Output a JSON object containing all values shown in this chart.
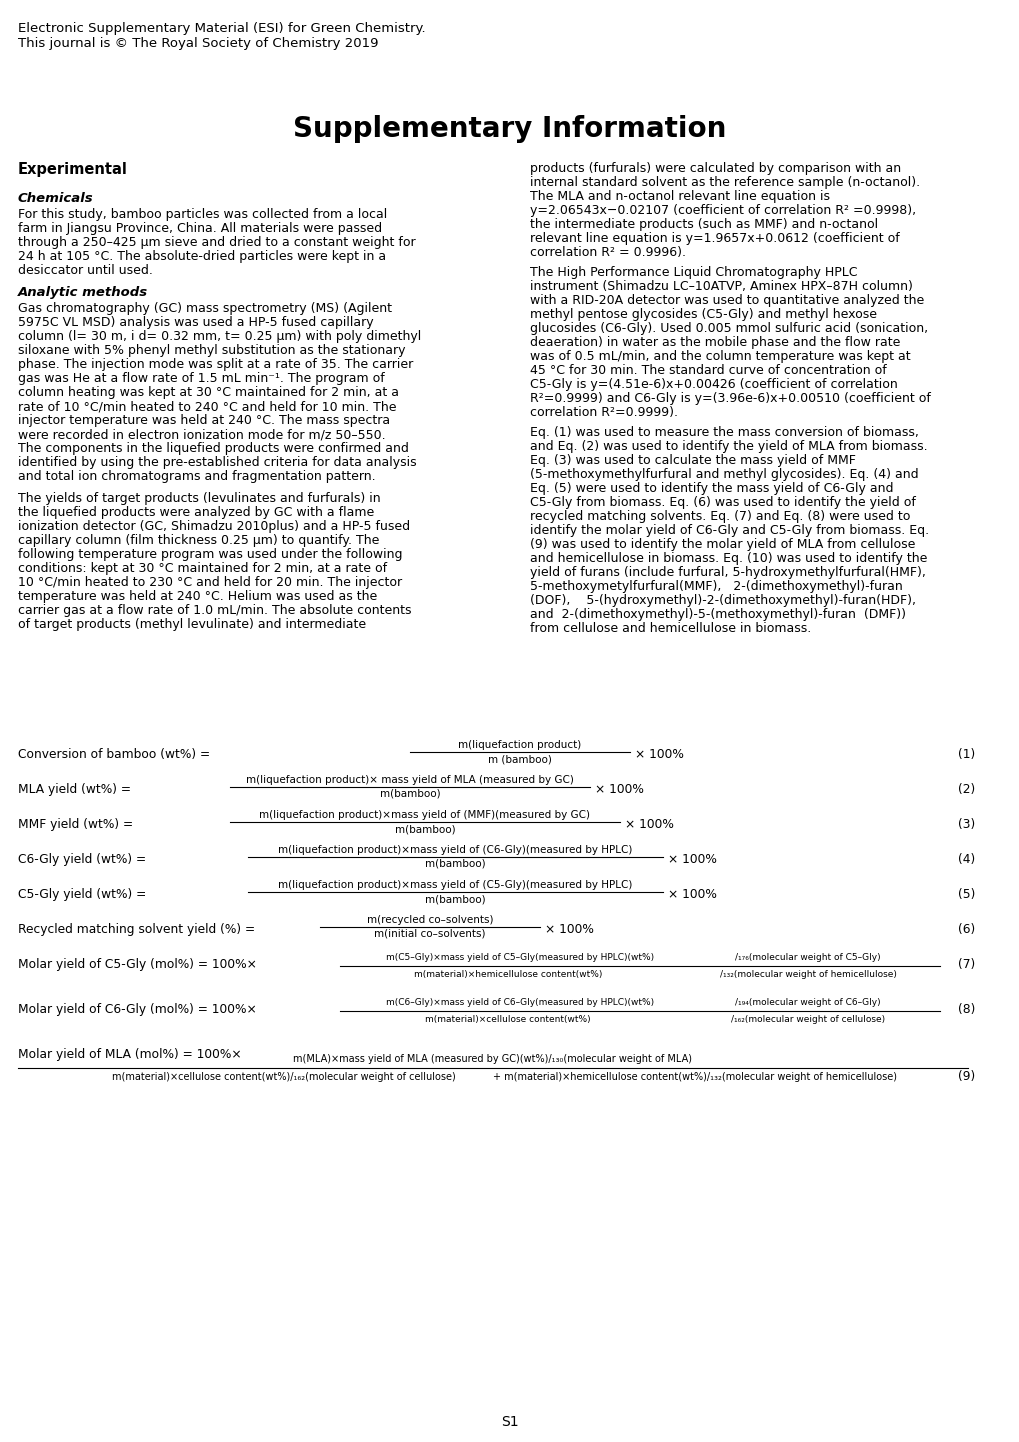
{
  "header_line1": "Electronic Supplementary Material (ESI) for Green Chemistry.",
  "header_line2": "This journal is © The Royal Society of Chemistry 2019",
  "title": "Supplementary Information",
  "section1_title": "Experimental",
  "subsec1_title": "Chemicals",
  "subsec1_body": "For this study, bamboo particles was collected from a local\nfarm in Jiangsu Province, China. All materials were passed\nthrough a 250–425 μm sieve and dried to a constant weight for\n24 h at 105 °C. The absolute-dried particles were kept in a\ndesiccator until used.",
  "subsec2_title": "Analytic methods",
  "subsec2_body": "Gas chromatography (GC) mass spectrometry (MS) (Agilent\n5975C VL MSD) analysis was used a HP-5 fused capillary\ncolumn (l= 30 m, i d= 0.32 mm, t= 0.25 μm) with poly dimethyl\nsiloxane with 5% phenyl methyl substitution as the stationary\nphase. The injection mode was split at a rate of 35. The carrier\ngas was He at a flow rate of 1.5 mL min⁻¹. The program of\ncolumn heating was kept at 30 °C maintained for 2 min, at a\nrate of 10 °C/min heated to 240 °C and held for 10 min. The\ninjector temperature was held at 240 °C. The mass spectra\nwere recorded in electron ionization mode for m/z 50–550.\nThe components in the liquefied products were confirmed and\nidentified by using the pre-established criteria for data analysis\nand total ion chromatograms and fragmentation pattern.",
  "left_para2": "The yields of target products (levulinates and furfurals) in\nthe liquefied products were analyzed by GC with a flame\nionization detector (GC, Shimadzu 2010plus) and a HP-5 fused\ncapillary column (film thickness 0.25 μm) to quantify. The\nfollowing temperature program was used under the following\nconditions: kept at 30 °C maintained for 2 min, at a rate of\n10 °C/min heated to 230 °C and held for 20 min. The injector\ntemperature was held at 240 °C. Helium was used as the\ncarrier gas at a flow rate of 1.0 mL/min. The absolute contents\nof target products (methyl levulinate) and intermediate",
  "right_para1": "products (furfurals) were calculated by comparison with an\ninternal standard solvent as the reference sample (n-octanol).\nThe MLA and n-octanol relevant line equation is\ny=2.06543x−0.02107 (coefficient of correlation R² =0.9998),\nthe intermediate products (such as MMF) and n-octanol\nrelevant line equation is y=1.9657x+0.0612 (coefficient of\ncorrelation R² = 0.9996).",
  "right_para2": "The High Performance Liquid Chromatography HPLC\ninstrument (Shimadzu LC–10ATVP, Aminex HPX–87H column)\nwith a RID-20A detector was used to quantitative analyzed the\nmethyl pentose glycosides (C5-Gly) and methyl hexose\nglucosides (C6-Gly). Used 0.005 mmol sulfuric acid (sonication,\ndeaeration) in water as the mobile phase and the flow rate\nwas of 0.5 mL/min, and the column temperature was kept at\n45 °C for 30 min. The standard curve of concentration of\nC5-Gly is y=(4.51e-6)x+0.00426 (coefficient of correlation\nR²=0.9999) and C6-Gly is y=(3.96e-6)x+0.00510 (coefficient of\ncorrelation R²=0.9999).",
  "right_para3": "Eq. (1) was used to measure the mass conversion of biomass,\nand Eq. (2) was used to identify the yield of MLA from biomass.\nEq. (3) was used to calculate the mass yield of MMF\n(5-methoxymethylfurfural and methyl glycosides). Eq. (4) and\nEq. (5) were used to identify the mass yield of C6-Gly and\nC5-Gly from biomass. Eq. (6) was used to identify the yield of\nrecycled matching solvents. Eq. (7) and Eq. (8) were used to\nidentify the molar yield of C6-Gly and C5-Gly from biomass. Eq.\n(9) was used to identify the molar yield of MLA from cellulose\nand hemicellulose in biomass. Eq. (10) was used to identify the\nyield of furans (include furfural, 5-hydroxymethylfurfural(HMF),\n5-methoxymetylfurfural(MMF),   2-(dimethoxymethyl)-furan\n(DOF),    5-(hydroxymethyl)-2-(dimethoxymethyl)-furan(HDF),\nand  2-(dimethoxymethyl)-5-(methoxymethyl)-furan  (DMF))\nfrom cellulose and hemicellulose in biomass.",
  "footer": "S1",
  "background": "#ffffff",
  "text_color": "#000000"
}
